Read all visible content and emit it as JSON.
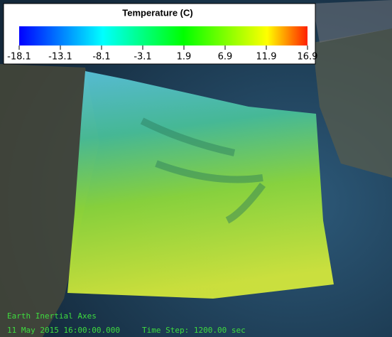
{
  "colorbar": {
    "title": "Temperature (C)",
    "range": [
      -18.1,
      16.9
    ],
    "ticks": [
      -18.1,
      -13.1,
      -8.1,
      -3.1,
      1.9,
      6.9,
      11.9,
      16.9
    ]
  },
  "status": {
    "axes": "Earth Inertial Axes",
    "time": "11 May 2015 16:00:00.000",
    "time_step": "Time Step: 1200.00 sec"
  }
}
